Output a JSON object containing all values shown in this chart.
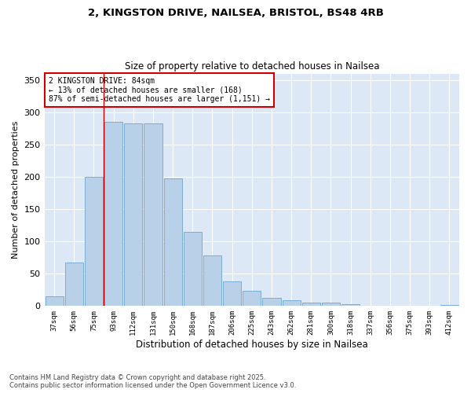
{
  "title1": "2, KINGSTON DRIVE, NAILSEA, BRISTOL, BS48 4RB",
  "title2": "Size of property relative to detached houses in Nailsea",
  "xlabel": "Distribution of detached houses by size in Nailsea",
  "ylabel": "Number of detached properties",
  "categories": [
    "37sqm",
    "56sqm",
    "75sqm",
    "93sqm",
    "112sqm",
    "131sqm",
    "150sqm",
    "168sqm",
    "187sqm",
    "206sqm",
    "225sqm",
    "243sqm",
    "262sqm",
    "281sqm",
    "300sqm",
    "318sqm",
    "337sqm",
    "356sqm",
    "375sqm",
    "393sqm",
    "412sqm"
  ],
  "values": [
    15,
    67,
    200,
    285,
    283,
    283,
    197,
    115,
    78,
    38,
    23,
    13,
    9,
    5,
    5,
    3,
    1,
    1,
    0,
    0,
    2
  ],
  "bar_color": "#b8d0e8",
  "bar_edge_color": "#7aadd4",
  "bg_color": "#dce8f5",
  "grid_color": "#ffffff",
  "vline_x": 2.5,
  "vline_color": "#cc0000",
  "annotation_line1": "2 KINGSTON DRIVE: 84sqm",
  "annotation_line2": "← 13% of detached houses are smaller (168)",
  "annotation_line3": "87% of semi-detached houses are larger (1,151) →",
  "annotation_box_color": "#cc0000",
  "ylim": [
    0,
    360
  ],
  "yticks": [
    0,
    50,
    100,
    150,
    200,
    250,
    300,
    350
  ],
  "footer": "Contains HM Land Registry data © Crown copyright and database right 2025.\nContains public sector information licensed under the Open Government Licence v3.0."
}
